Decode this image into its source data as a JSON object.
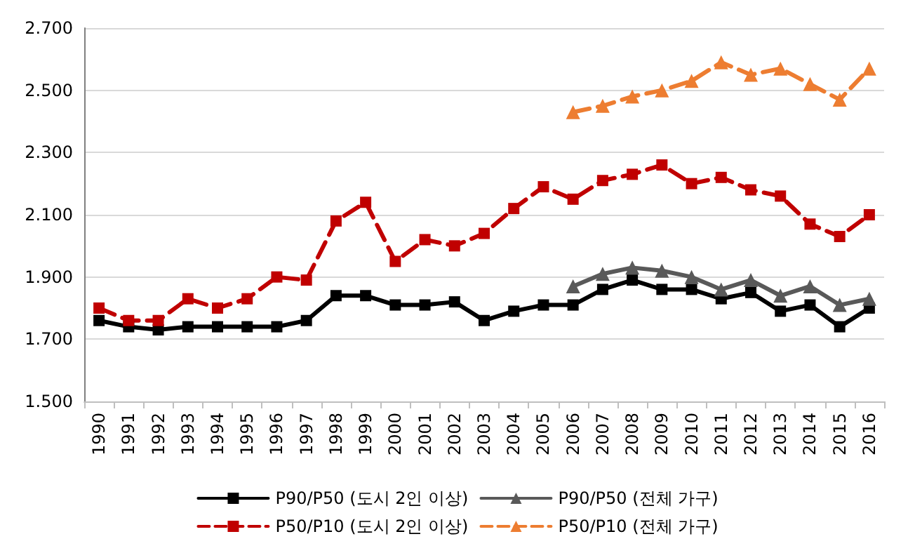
{
  "chart_data": {
    "type": "line",
    "categories": [
      "1990",
      "1991",
      "1992",
      "1993",
      "1994",
      "1995",
      "1996",
      "1997",
      "1998",
      "1999",
      "2000",
      "2001",
      "2002",
      "2003",
      "2004",
      "2005",
      "2006",
      "2007",
      "2008",
      "2009",
      "2010",
      "2011",
      "2012",
      "2013",
      "2014",
      "2015",
      "2016"
    ],
    "series": [
      {
        "name": "P90/P50 (도시 2인 이상)",
        "color": "#000000",
        "marker": "square",
        "line_style": "solid",
        "values": [
          1.76,
          1.74,
          1.73,
          1.74,
          1.74,
          1.74,
          1.74,
          1.76,
          1.84,
          1.84,
          1.81,
          1.81,
          1.82,
          1.76,
          1.79,
          1.81,
          1.81,
          1.86,
          1.89,
          1.86,
          1.86,
          1.83,
          1.85,
          1.79,
          1.81,
          1.74,
          1.8
        ]
      },
      {
        "name": "P90/P50 (전체 가구)",
        "color": "#595959",
        "marker": "triangle",
        "line_style": "solid",
        "values": [
          null,
          null,
          null,
          null,
          null,
          null,
          null,
          null,
          null,
          null,
          null,
          null,
          null,
          null,
          null,
          null,
          1.87,
          1.91,
          1.93,
          1.92,
          1.9,
          1.86,
          1.89,
          1.84,
          1.87,
          1.81,
          1.83
        ]
      },
      {
        "name": "P50/P10 (도시 2인 이상)",
        "color": "#c00000",
        "marker": "square",
        "line_style": "dashed",
        "values": [
          1.8,
          1.76,
          1.76,
          1.83,
          1.8,
          1.83,
          1.9,
          1.89,
          2.08,
          2.14,
          1.95,
          2.02,
          2.0,
          2.04,
          2.12,
          2.19,
          2.15,
          2.21,
          2.23,
          2.26,
          2.2,
          2.22,
          2.18,
          2.16,
          2.07,
          2.03,
          2.1
        ]
      },
      {
        "name": "P50/P10 (전체 가구)",
        "color": "#ed7d31",
        "marker": "triangle",
        "line_style": "dashed",
        "values": [
          null,
          null,
          null,
          null,
          null,
          null,
          null,
          null,
          null,
          null,
          null,
          null,
          null,
          null,
          null,
          null,
          2.43,
          2.45,
          2.48,
          2.5,
          2.53,
          2.59,
          2.55,
          2.57,
          2.52,
          2.47,
          2.57
        ]
      }
    ],
    "ylim": [
      1.5,
      2.7
    ],
    "yticks": [
      {
        "value": 1.5,
        "label": "1.500"
      },
      {
        "value": 1.7,
        "label": "1.700"
      },
      {
        "value": 1.9,
        "label": "1.900"
      },
      {
        "value": 2.1,
        "label": "2.100"
      },
      {
        "value": 2.3,
        "label": "2.300"
      },
      {
        "value": 2.5,
        "label": "2.500"
      },
      {
        "value": 2.7,
        "label": "2.700"
      }
    ],
    "grid": "y",
    "legend": "bottom"
  }
}
